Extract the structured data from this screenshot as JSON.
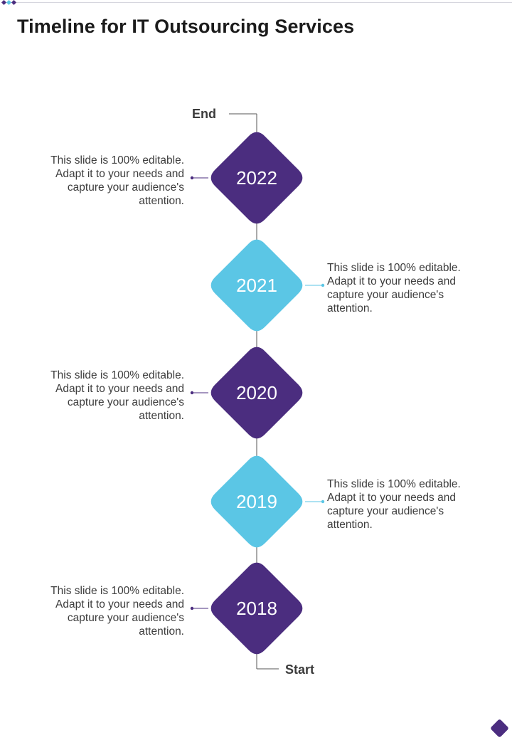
{
  "title": "Timeline for IT Outsourcing Services",
  "end_label": "End",
  "start_label": "Start",
  "colors": {
    "dark": "#4b2d7f",
    "light": "#5bc6e5",
    "line": "#555555",
    "text": "#3d3d3d"
  },
  "milestones": [
    {
      "year": "2022",
      "color": "dark",
      "side": "left",
      "text": "This slide is 100% editable. Adapt it to your needs and capture your audience's attention."
    },
    {
      "year": "2021",
      "color": "light",
      "side": "right",
      "text": "This slide is 100% editable. Adapt it to your needs and capture your audience's attention."
    },
    {
      "year": "2020",
      "color": "dark",
      "side": "left",
      "text": "This slide is 100% editable. Adapt it to your needs and capture your audience's attention."
    },
    {
      "year": "2019",
      "color": "light",
      "side": "right",
      "text": "This slide is 100% editable. Adapt it to your needs and capture your audience's attention."
    },
    {
      "year": "2018",
      "color": "dark",
      "side": "left",
      "text": "This slide is 100% editable. Adapt it to your needs and capture your audience's attention."
    }
  ]
}
